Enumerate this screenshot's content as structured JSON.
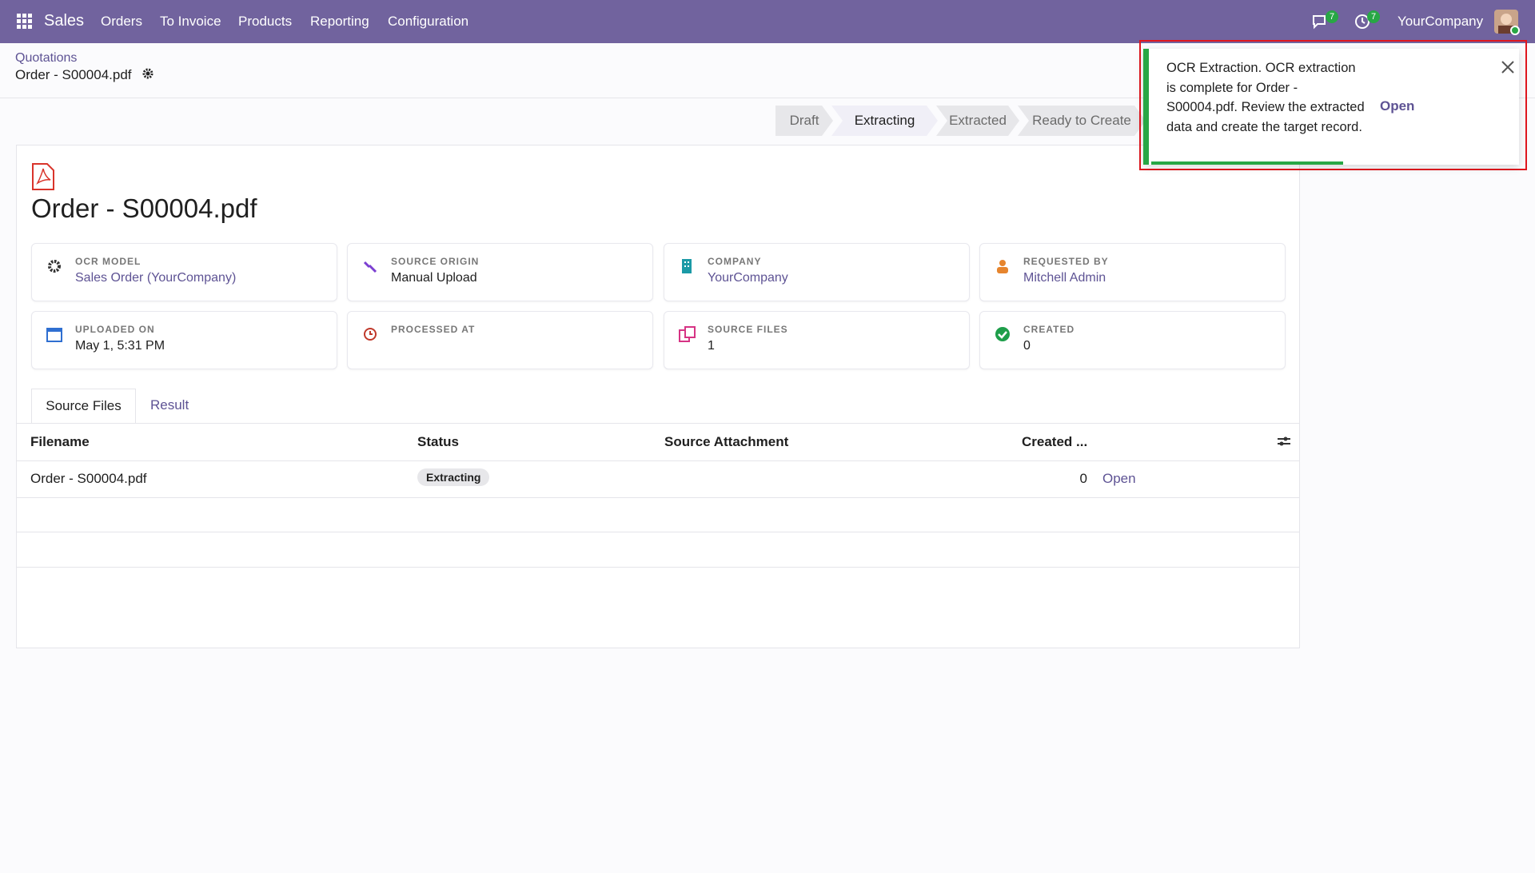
{
  "navbar": {
    "app": "Sales",
    "menu": [
      "Orders",
      "To Invoice",
      "Products",
      "Reporting",
      "Configuration"
    ],
    "messages_badge": "7",
    "activities_badge": "7",
    "company": "YourCompany"
  },
  "breadcrumb": {
    "parent": "Quotations",
    "current": "Order - S00004.pdf"
  },
  "statusbar": {
    "stages": [
      "Draft",
      "Extracting",
      "Extracted",
      "Ready to Create"
    ],
    "active_index": 1
  },
  "record": {
    "title": "Order - S00004.pdf",
    "fields": [
      {
        "label": "OCR MODEL",
        "value": "Sales Order (YourCompany)"
      },
      {
        "label": "SOURCE ORIGIN",
        "value": "Manual Upload"
      },
      {
        "label": "COMPANY",
        "value": "YourCompany"
      },
      {
        "label": "REQUESTED BY",
        "value": "Mitchell Admin"
      },
      {
        "label": "UPLOADED ON",
        "value": "May 1, 5:31 PM"
      },
      {
        "label": "PROCESSED AT"
      },
      {
        "label": "SOURCE FILES",
        "value": "1"
      },
      {
        "label": "CREATED",
        "value": "0"
      }
    ]
  },
  "tabs": [
    "Source Files",
    "Result"
  ],
  "table": {
    "headers": [
      "Filename",
      "Status",
      "Source Attachment",
      "Created ..."
    ],
    "rows": [
      {
        "filename": "Order - S00004.pdf",
        "status": "Extracting",
        "created": 0,
        "action": "Open"
      }
    ]
  },
  "notification": {
    "text": "OCR Extraction. OCR extraction is complete for Order - S00004.pdf. Review the extracted data and create the target record.",
    "action": "Open"
  }
}
